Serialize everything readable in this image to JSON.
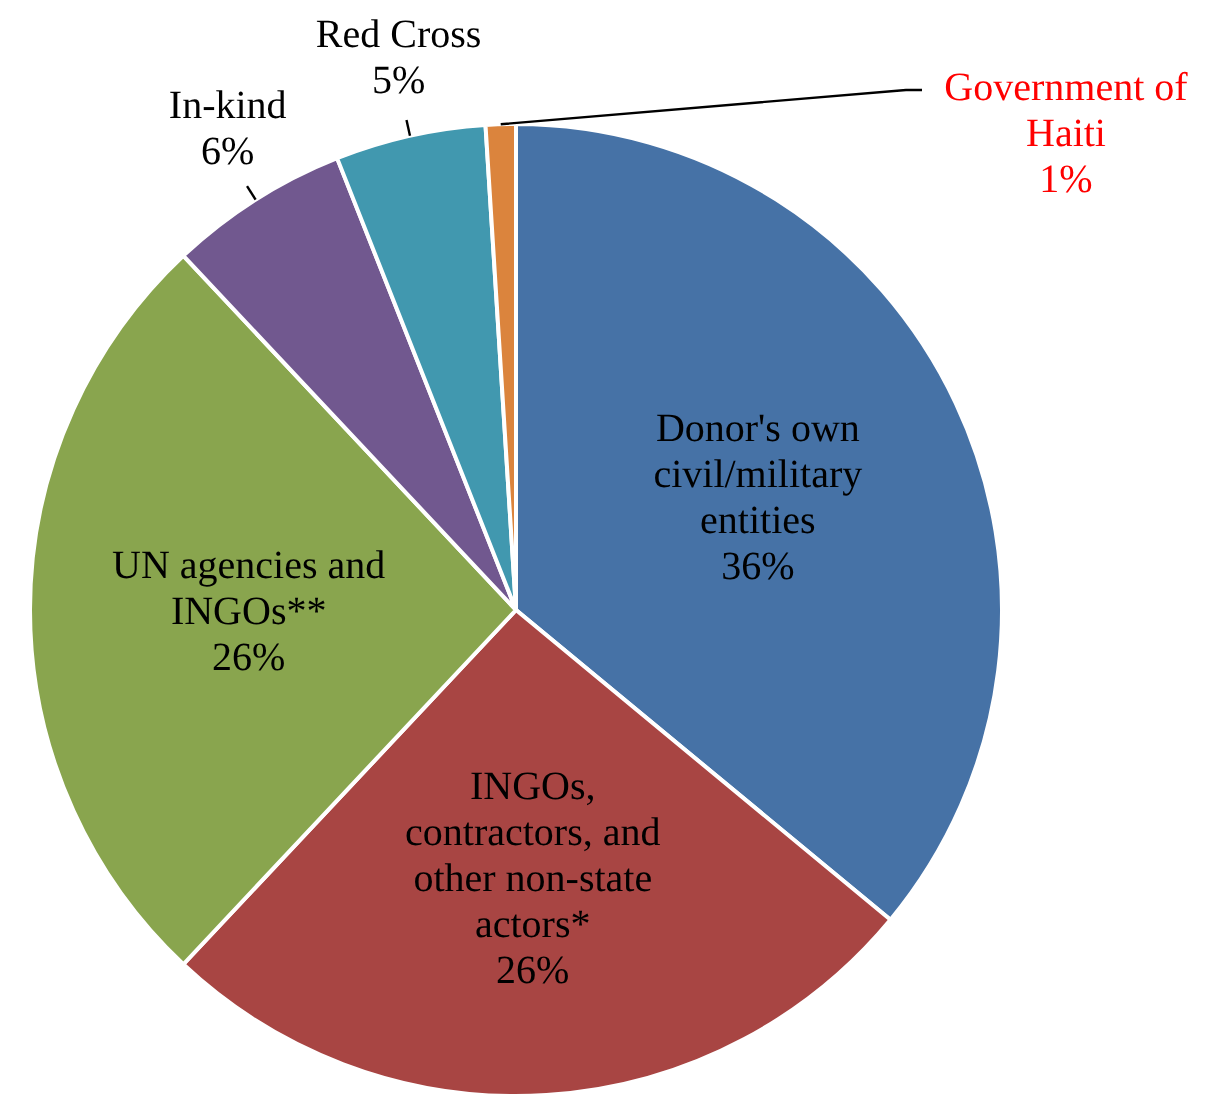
{
  "chart_data": {
    "type": "pie",
    "categories": [
      "Donor's own civil/military entities",
      "INGOs, contractors, and other non-state actors*",
      "UN agencies and INGOs**",
      "In-kind",
      "Red Cross",
      "Government of Haiti"
    ],
    "values": [
      36,
      26,
      26,
      6,
      5,
      1
    ],
    "value_labels": [
      "36%",
      "26%",
      "26%",
      "6%",
      "5%",
      "1%"
    ],
    "colors": [
      "#4672a6",
      "#a84543",
      "#89a54e",
      "#71588f",
      "#4198af",
      "#db843d"
    ],
    "legend": false
  }
}
